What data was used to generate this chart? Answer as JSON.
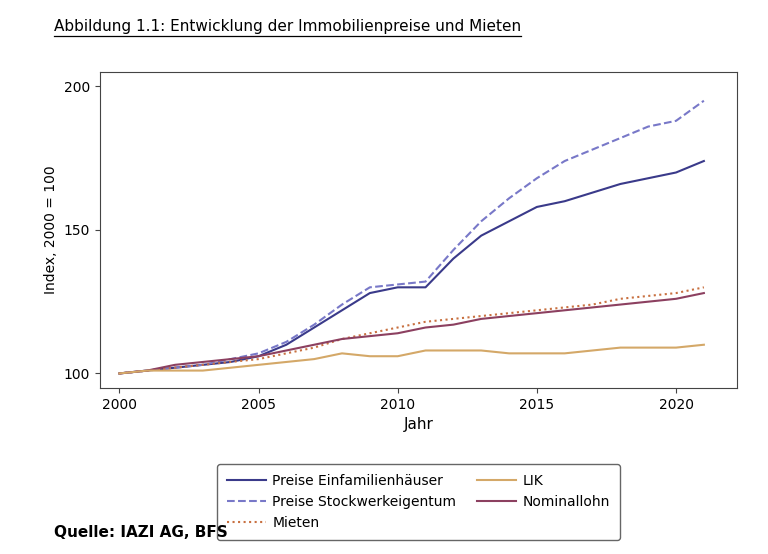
{
  "title": "Abbildung 1.1: Entwicklung der Immobilienpreise und Mieten",
  "xlabel": "Jahr",
  "ylabel": "Index, 2000 = 100",
  "source": "Quelle: IAZI AG, BFS",
  "ylim": [
    95,
    205
  ],
  "yticks": [
    100,
    150,
    200
  ],
  "xticks": [
    2000,
    2005,
    2010,
    2015,
    2020
  ],
  "xlim": [
    1999.3,
    2022.2
  ],
  "background_color": "#ffffff",
  "years": [
    2000,
    2001,
    2002,
    2003,
    2004,
    2005,
    2006,
    2007,
    2008,
    2009,
    2010,
    2011,
    2012,
    2013,
    2014,
    2015,
    2016,
    2017,
    2018,
    2019,
    2020,
    2021
  ],
  "preise_efh": [
    100,
    101,
    102,
    103,
    104,
    106,
    110,
    116,
    122,
    128,
    130,
    130,
    140,
    148,
    153,
    158,
    160,
    163,
    166,
    168,
    170,
    174
  ],
  "preise_stwe": [
    100,
    101,
    102,
    103,
    105,
    107,
    111,
    117,
    124,
    130,
    131,
    132,
    143,
    153,
    161,
    168,
    174,
    178,
    182,
    186,
    188,
    195
  ],
  "mieten": [
    100,
    101,
    102,
    103,
    104,
    105,
    107,
    109,
    112,
    114,
    116,
    118,
    119,
    120,
    121,
    122,
    123,
    124,
    126,
    127,
    128,
    130
  ],
  "nominallohn": [
    100,
    101,
    103,
    104,
    105,
    106,
    108,
    110,
    112,
    113,
    114,
    116,
    117,
    119,
    120,
    121,
    122,
    123,
    124,
    125,
    126,
    128
  ],
  "lik": [
    100,
    101,
    101,
    101,
    102,
    103,
    104,
    105,
    107,
    106,
    106,
    108,
    108,
    108,
    107,
    107,
    107,
    108,
    109,
    109,
    109,
    110
  ],
  "color_efh": "#3a3a8a",
  "color_stwe": "#7878c8",
  "color_mieten": "#c87040",
  "color_nominallohn": "#8c4060",
  "color_lik": "#d4a868",
  "lw": 1.5,
  "legend_labels": [
    "Preise Einfamilienhäuser",
    "Preise Stockwerkeigentum",
    "Mieten",
    "LIK",
    "Nominallohn"
  ]
}
